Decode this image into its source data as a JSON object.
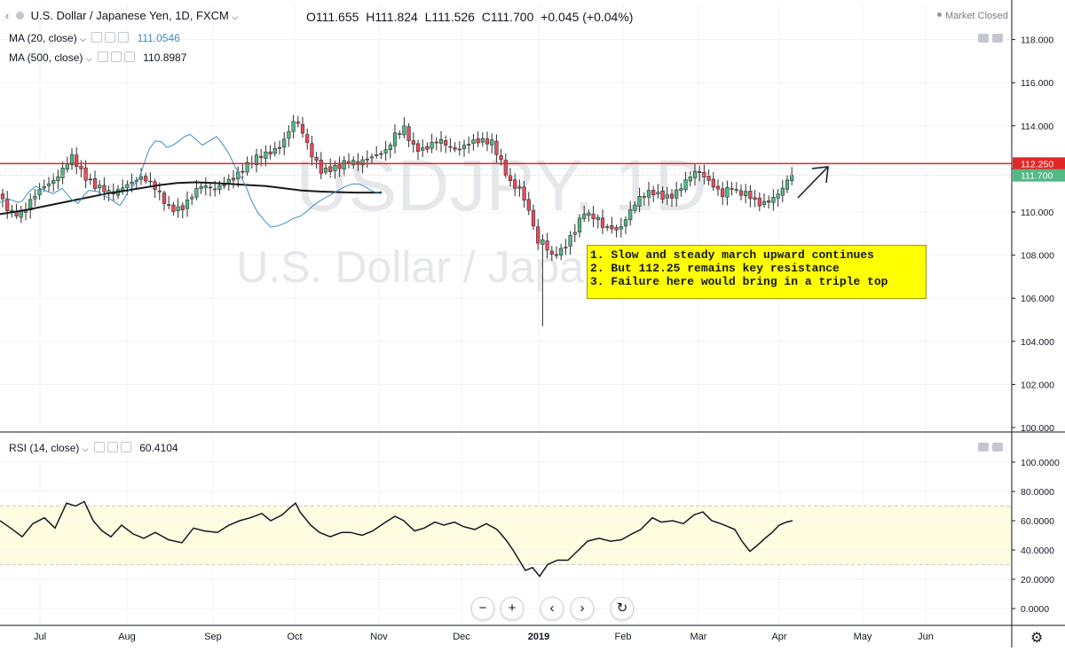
{
  "header": {
    "symbol_title": "U.S. Dollar / Japanese Yen, 1D, FXCM",
    "open": "O111.655",
    "high": "H111.824",
    "low": "L111.526",
    "close": "C111.700",
    "change": "+0.045 (+0.04%)",
    "market_status": "Market Closed"
  },
  "indicators": {
    "ma20_label": "MA (20, close)",
    "ma20_value": "111.0546",
    "ma500_label": "MA (500, close)",
    "ma500_value": "110.8987",
    "rsi_label": "RSI (14, close)",
    "rsi_value": "60.4104"
  },
  "watermark": {
    "ticker": "USDJPY, 1D",
    "name": "U.S. Dollar / Japanese Yen"
  },
  "annotation": {
    "lines": [
      "1. Slow and steady march upward continues",
      "2. But 112.25 remains key resistance",
      "3. Failure here would bring in a triple top"
    ]
  },
  "price_labels": {
    "resistance": "112.250",
    "last": "111.700"
  },
  "colors": {
    "up": "#53b987",
    "down": "#eb4d5c",
    "ma20": "#3b8fc4",
    "ma500": "#1a1a1a",
    "resistance": "#e32626",
    "last_price": "#53b987",
    "rsi_band": "#fffde0",
    "annotation_bg": "#ffff00"
  },
  "chart_data": [
    {
      "type": "candlestick",
      "title": "USDJPY, 1D",
      "y_ticks": [
        "100.000",
        "102.000",
        "104.000",
        "106.000",
        "108.000",
        "110.000",
        "112.000",
        "114.000",
        "116.000",
        "118.000"
      ],
      "ylim": [
        99.6,
        118.3
      ],
      "x_ticks": [
        "Jul",
        "Aug",
        "Sep",
        "Oct",
        "Nov",
        "Dec",
        "2019",
        "Feb",
        "Mar",
        "Apr",
        "May",
        "Jun"
      ],
      "horizontal_lines": [
        {
          "value": 112.25,
          "label": "112.250"
        }
      ],
      "last_price": 111.7,
      "ma_20": [
        [
          0,
          110.45
        ],
        [
          10,
          110.6
        ],
        [
          20,
          110.45
        ],
        [
          25,
          110.5
        ],
        [
          32,
          110.9
        ],
        [
          40,
          111.2
        ],
        [
          50,
          111.0
        ],
        [
          60,
          110.85
        ],
        [
          70,
          111.1
        ],
        [
          80,
          110.6
        ],
        [
          88,
          110.4
        ],
        [
          95,
          110.8
        ],
        [
          100,
          111.0
        ],
        [
          110,
          110.95
        ],
        [
          120,
          110.7
        ],
        [
          128,
          110.5
        ],
        [
          135,
          110.3
        ],
        [
          140,
          110.6
        ],
        [
          145,
          111.0
        ],
        [
          150,
          111.2
        ],
        [
          157,
          111.6
        ],
        [
          162,
          112.2
        ],
        [
          168,
          112.9
        ],
        [
          175,
          113.3
        ],
        [
          182,
          113.25
        ],
        [
          188,
          113.0
        ],
        [
          195,
          113.1
        ],
        [
          202,
          113.3
        ],
        [
          208,
          113.5
        ],
        [
          214,
          113.6
        ],
        [
          220,
          113.4
        ],
        [
          228,
          113.1
        ],
        [
          236,
          113.3
        ],
        [
          244,
          113.5
        ],
        [
          250,
          113.2
        ],
        [
          258,
          112.7
        ],
        [
          265,
          112.1
        ],
        [
          272,
          111.6
        ],
        [
          278,
          111.1
        ],
        [
          283,
          110.55
        ],
        [
          290,
          110.0
        ],
        [
          298,
          109.6
        ],
        [
          305,
          109.3
        ],
        [
          313,
          109.35
        ],
        [
          322,
          109.5
        ],
        [
          330,
          109.7
        ],
        [
          338,
          109.8
        ],
        [
          345,
          110.0
        ],
        [
          353,
          110.3
        ],
        [
          360,
          110.5
        ],
        [
          368,
          110.7
        ],
        [
          375,
          110.85
        ],
        [
          383,
          111.05
        ],
        [
          390,
          111.2
        ],
        [
          397,
          111.3
        ],
        [
          405,
          111.3
        ],
        [
          412,
          111.15
        ],
        [
          418,
          111.0
        ],
        [
          424,
          110.9
        ],
        [
          430,
          110.95
        ]
      ],
      "ma_500": [
        [
          0,
          109.9
        ],
        [
          30,
          110.1
        ],
        [
          60,
          110.35
        ],
        [
          90,
          110.6
        ],
        [
          120,
          110.85
        ],
        [
          150,
          111.05
        ],
        [
          180,
          111.25
        ],
        [
          200,
          111.35
        ],
        [
          220,
          111.38
        ],
        [
          240,
          111.35
        ],
        [
          260,
          111.3
        ],
        [
          280,
          111.25
        ],
        [
          300,
          111.2
        ],
        [
          320,
          111.1
        ],
        [
          340,
          111.0
        ],
        [
          360,
          110.95
        ],
        [
          380,
          110.92
        ],
        [
          400,
          110.9
        ],
        [
          420,
          110.9
        ],
        [
          430,
          110.9
        ]
      ],
      "price_path": [
        [
          0,
          110.8
        ],
        [
          12,
          110.2
        ],
        [
          25,
          109.95
        ],
        [
          40,
          110.6
        ],
        [
          60,
          111.5
        ],
        [
          80,
          112.8
        ],
        [
          95,
          111.5
        ],
        [
          105,
          111.0
        ],
        [
          125,
          111.0
        ],
        [
          140,
          111.4
        ],
        [
          160,
          111.4
        ],
        [
          175,
          111.0
        ],
        [
          190,
          110.4
        ],
        [
          205,
          110.3
        ],
        [
          215,
          110.6
        ],
        [
          225,
          111.0
        ],
        [
          240,
          111.0
        ],
        [
          255,
          111.6
        ],
        [
          270,
          111.9
        ],
        [
          285,
          112.2
        ],
        [
          300,
          112.6
        ],
        [
          315,
          113.2
        ],
        [
          325,
          113.9
        ],
        [
          332,
          114.4
        ],
        [
          340,
          113.7
        ],
        [
          350,
          112.5
        ],
        [
          362,
          111.8
        ],
        [
          375,
          112.2
        ],
        [
          390,
          112.5
        ],
        [
          405,
          112.1
        ],
        [
          420,
          112.4
        ],
        [
          435,
          113.0
        ],
        [
          445,
          113.8
        ],
        [
          455,
          114.0
        ],
        [
          465,
          112.9
        ],
        [
          475,
          112.6
        ],
        [
          485,
          113.0
        ],
        [
          495,
          113.5
        ],
        [
          505,
          113.3
        ],
        [
          515,
          113.0
        ],
        [
          525,
          113.0
        ],
        [
          540,
          113.1
        ],
        [
          555,
          113.3
        ],
        [
          565,
          112.5
        ],
        [
          575,
          111.5
        ],
        [
          585,
          111.0
        ],
        [
          592,
          110.3
        ],
        [
          600,
          109.3
        ],
        [
          607,
          108.3
        ],
        [
          612,
          108.7
        ],
        [
          620,
          108.1
        ],
        [
          628,
          108.3
        ],
        [
          635,
          108.5
        ],
        [
          642,
          108.8
        ],
        [
          650,
          109.2
        ],
        [
          658,
          109.8
        ],
        [
          665,
          109.6
        ],
        [
          672,
          109.7
        ],
        [
          680,
          109.4
        ],
        [
          688,
          109.5
        ],
        [
          697,
          109.3
        ],
        [
          705,
          109.7
        ],
        [
          715,
          110.2
        ],
        [
          725,
          110.6
        ],
        [
          735,
          110.9
        ],
        [
          745,
          110.9
        ],
        [
          755,
          110.9
        ],
        [
          765,
          111.1
        ],
        [
          775,
          111.4
        ],
        [
          785,
          111.7
        ],
        [
          795,
          111.5
        ],
        [
          805,
          111.3
        ],
        [
          815,
          111.0
        ],
        [
          823,
          111.4
        ],
        [
          830,
          110.9
        ],
        [
          838,
          110.7
        ],
        [
          846,
          110.5
        ],
        [
          853,
          110.2
        ],
        [
          860,
          110.4
        ],
        [
          868,
          110.7
        ],
        [
          875,
          111.0
        ],
        [
          882,
          111.3
        ],
        [
          888,
          111.6
        ],
        [
          893,
          111.7
        ]
      ],
      "price_high_low_range": [
        104.7,
        114.5
      ]
    },
    {
      "type": "line",
      "title": "RSI (14, close)",
      "y_ticks": [
        "0.0000",
        "20.0000",
        "40.0000",
        "60.0000",
        "80.0000",
        "100.0000"
      ],
      "ylim": [
        -3,
        103
      ],
      "band": [
        30,
        70
      ],
      "last_value": 60.4104,
      "rsi": [
        [
          0,
          60
        ],
        [
          12,
          55
        ],
        [
          25,
          49
        ],
        [
          37,
          58
        ],
        [
          50,
          62
        ],
        [
          62,
          55
        ],
        [
          75,
          72
        ],
        [
          85,
          70
        ],
        [
          95,
          73
        ],
        [
          105,
          60
        ],
        [
          115,
          53
        ],
        [
          125,
          49
        ],
        [
          137,
          57
        ],
        [
          150,
          51
        ],
        [
          162,
          48
        ],
        [
          175,
          52
        ],
        [
          190,
          47
        ],
        [
          205,
          45
        ],
        [
          218,
          55
        ],
        [
          230,
          53
        ],
        [
          245,
          52
        ],
        [
          258,
          57
        ],
        [
          270,
          60
        ],
        [
          282,
          62
        ],
        [
          295,
          65
        ],
        [
          305,
          60
        ],
        [
          318,
          64
        ],
        [
          327,
          69
        ],
        [
          333,
          72
        ],
        [
          338,
          66
        ],
        [
          350,
          57
        ],
        [
          360,
          52
        ],
        [
          372,
          49
        ],
        [
          385,
          52
        ],
        [
          395,
          52
        ],
        [
          408,
          50
        ],
        [
          420,
          53
        ],
        [
          432,
          58
        ],
        [
          445,
          63
        ],
        [
          455,
          60
        ],
        [
          467,
          53
        ],
        [
          478,
          55
        ],
        [
          490,
          59
        ],
        [
          500,
          57
        ],
        [
          512,
          59
        ],
        [
          522,
          56
        ],
        [
          535,
          54
        ],
        [
          548,
          58
        ],
        [
          560,
          54
        ],
        [
          570,
          47
        ],
        [
          578,
          40
        ],
        [
          585,
          33
        ],
        [
          592,
          26
        ],
        [
          600,
          28
        ],
        [
          608,
          22
        ],
        [
          617,
          30
        ],
        [
          628,
          33
        ],
        [
          640,
          33
        ],
        [
          652,
          40
        ],
        [
          662,
          46
        ],
        [
          675,
          48
        ],
        [
          688,
          46
        ],
        [
          700,
          47
        ],
        [
          712,
          51
        ],
        [
          722,
          54
        ],
        [
          735,
          62
        ],
        [
          745,
          59
        ],
        [
          758,
          60
        ],
        [
          770,
          58
        ],
        [
          782,
          64
        ],
        [
          792,
          66
        ],
        [
          802,
          60
        ],
        [
          812,
          58
        ],
        [
          820,
          56
        ],
        [
          828,
          54
        ],
        [
          836,
          46
        ],
        [
          845,
          39
        ],
        [
          853,
          43
        ],
        [
          862,
          48
        ],
        [
          870,
          52
        ],
        [
          878,
          57
        ],
        [
          886,
          59
        ],
        [
          893,
          60
        ]
      ]
    }
  ]
}
